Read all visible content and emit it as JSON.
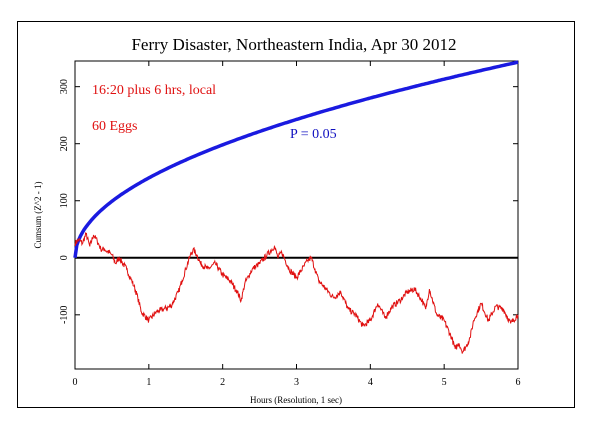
{
  "chart_data": {
    "type": "line",
    "title": "Ferry Disaster, Northeastern India, Apr 30 2012",
    "xlabel": "Hours (Resolution, 1 sec)",
    "ylabel": "Cumsum (Z^2 - 1)",
    "xlim": [
      0,
      6
    ],
    "ylim": [
      -195,
      345
    ],
    "x_ticks": [
      0,
      1,
      2,
      3,
      4,
      5,
      6
    ],
    "x_tick_labels": [
      "0",
      "1",
      "2",
      "3",
      "4",
      "5",
      "6"
    ],
    "y_ticks": [
      -100,
      0,
      100,
      200,
      300
    ],
    "y_tick_labels": [
      "-100",
      "0",
      "100",
      "200",
      "300"
    ],
    "grid": false,
    "annotations": [
      {
        "text": "16:20 plus 6 hrs, local",
        "color": "#e01010"
      },
      {
        "text": "60 Eggs",
        "color": "#e01010"
      },
      {
        "text": "P = 0.05",
        "color": "#1010c0"
      }
    ],
    "reference_line": {
      "y": 0,
      "color": "#000000"
    },
    "series": [
      {
        "role": "p-0.05-envelope",
        "color": "#1a1ae0",
        "function": "sqrt",
        "x": [
          0,
          0.1,
          0.25,
          0.5,
          1,
          1.5,
          2,
          2.5,
          3,
          3.5,
          4,
          4.5,
          5,
          5.5,
          6
        ],
        "values": [
          0,
          44,
          70,
          99,
          140,
          171,
          198,
          221,
          242,
          262,
          280,
          297,
          313,
          328,
          343
        ]
      },
      {
        "role": "cumulative-deviation",
        "color": "#e01010",
        "x": [
          0,
          0.05,
          0.1,
          0.15,
          0.2,
          0.25,
          0.3,
          0.35,
          0.4,
          0.5,
          0.55,
          0.6,
          0.7,
          0.8,
          0.85,
          0.9,
          1.0,
          1.1,
          1.2,
          1.3,
          1.4,
          1.45,
          1.5,
          1.55,
          1.6,
          1.65,
          1.7,
          1.8,
          1.9,
          2.0,
          2.1,
          2.2,
          2.25,
          2.3,
          2.4,
          2.5,
          2.6,
          2.7,
          2.75,
          2.8,
          2.9,
          3.0,
          3.1,
          3.15,
          3.2,
          3.25,
          3.3,
          3.4,
          3.5,
          3.6,
          3.7,
          3.8,
          3.9,
          4.0,
          4.1,
          4.2,
          4.3,
          4.4,
          4.5,
          4.6,
          4.7,
          4.75,
          4.8,
          4.9,
          5.0,
          5.1,
          5.15,
          5.2,
          5.25,
          5.3,
          5.35,
          5.4,
          5.5,
          5.6,
          5.7,
          5.8,
          5.9,
          6.0
        ],
        "values": [
          25,
          32,
          25,
          42,
          20,
          40,
          30,
          15,
          15,
          5,
          -10,
          0,
          -20,
          -50,
          -70,
          -95,
          -110,
          -95,
          -90,
          -85,
          -60,
          -40,
          -20,
          0,
          15,
          5,
          -10,
          -20,
          -10,
          -30,
          -40,
          -60,
          -75,
          -45,
          -20,
          -10,
          5,
          20,
          0,
          10,
          -20,
          -35,
          -15,
          -5,
          0,
          -20,
          -40,
          -55,
          -70,
          -60,
          -90,
          -100,
          -120,
          -110,
          -80,
          -105,
          -85,
          -75,
          -60,
          -55,
          -75,
          -90,
          -55,
          -100,
          -110,
          -140,
          -160,
          -150,
          -165,
          -155,
          -140,
          -110,
          -80,
          -110,
          -85,
          -90,
          -115,
          -100
        ]
      }
    ]
  }
}
